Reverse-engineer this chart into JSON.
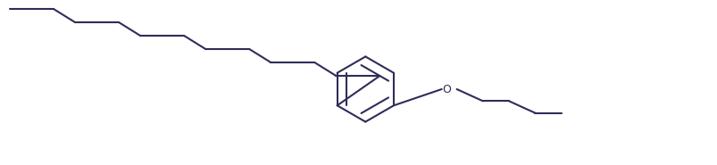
{
  "line_color": "#2d2d5a",
  "line_width": 1.5,
  "bg_color": "#ffffff",
  "figsize": [
    8.04,
    1.85
  ],
  "dpi": 100,
  "N_plus_color": "#cc6600",
  "O_color": "#2d2d5a",
  "text_color": "#cc6600"
}
